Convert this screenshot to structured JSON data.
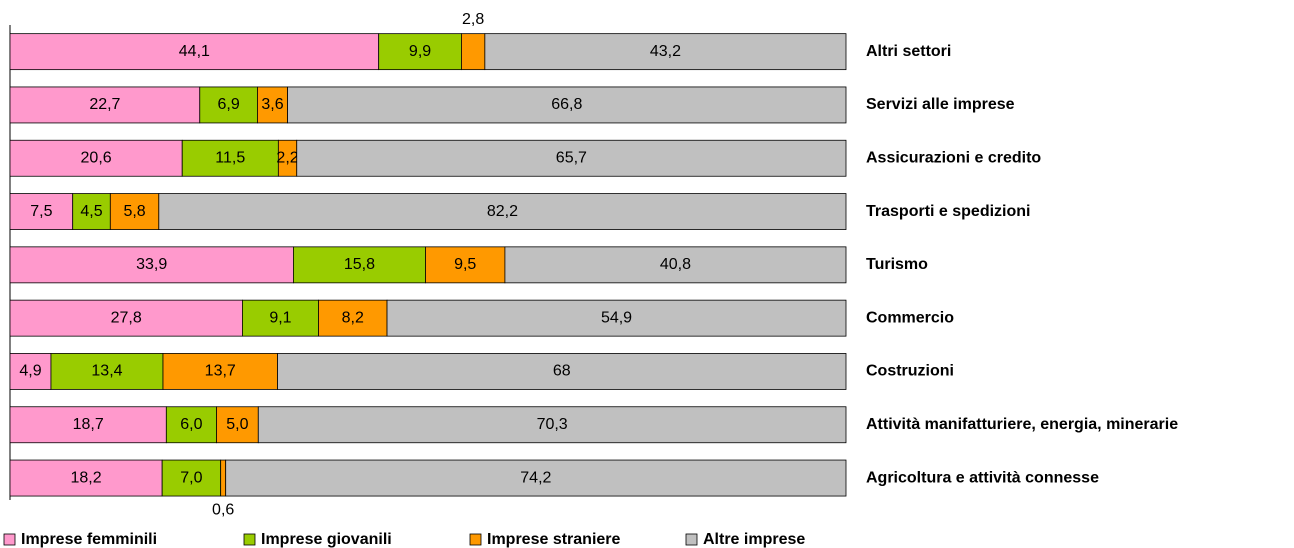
{
  "chart_data": {
    "type": "stacked_hbar",
    "categories": [
      "Altri settori",
      "Servizi alle imprese",
      "Assicurazioni e credito",
      "Trasporti e spedizioni",
      "Turismo",
      "Commercio",
      "Costruzioni",
      "Attività manifatturiere, energia, minerarie",
      "Agricoltura e attività connesse"
    ],
    "xlim": [
      0,
      100
    ],
    "series": [
      {
        "name": "Imprese femminili",
        "color": "#ff99cc",
        "values": [
          44.1,
          22.7,
          20.6,
          7.5,
          33.9,
          27.8,
          4.9,
          18.7,
          18.2
        ],
        "value_labels": [
          "44,1",
          "22,7",
          "20,6",
          "7,5",
          "33,9",
          "27,8",
          "4,9",
          "18,7",
          "18,2"
        ]
      },
      {
        "name": "Imprese giovanili",
        "color": "#99cc00",
        "values": [
          9.9,
          6.9,
          11.5,
          4.5,
          15.8,
          9.1,
          13.4,
          6.0,
          7.0
        ],
        "value_labels": [
          "9,9",
          "6,9",
          "11,5",
          "4,5",
          "15,8",
          "9,1",
          "13,4",
          "6,0",
          "7,0"
        ]
      },
      {
        "name": "Imprese straniere",
        "color": "#ff9900",
        "values": [
          2.8,
          3.6,
          2.2,
          5.8,
          9.5,
          8.2,
          13.7,
          5.0,
          0.6
        ],
        "value_labels": [
          "2,8",
          "3,6",
          "2,2",
          "5,8",
          "9,5",
          "8,2",
          "13,7",
          "5,0",
          "0,6"
        ]
      },
      {
        "name": "Altre imprese",
        "color": "#c0c0c0",
        "values": [
          43.2,
          66.8,
          65.7,
          82.2,
          40.8,
          54.9,
          68,
          70.3,
          74.2
        ],
        "value_labels": [
          "43,2",
          "66,8",
          "65,7",
          "82,2",
          "40,8",
          "54,9",
          "68",
          "70,3",
          "74,2"
        ]
      }
    ]
  }
}
